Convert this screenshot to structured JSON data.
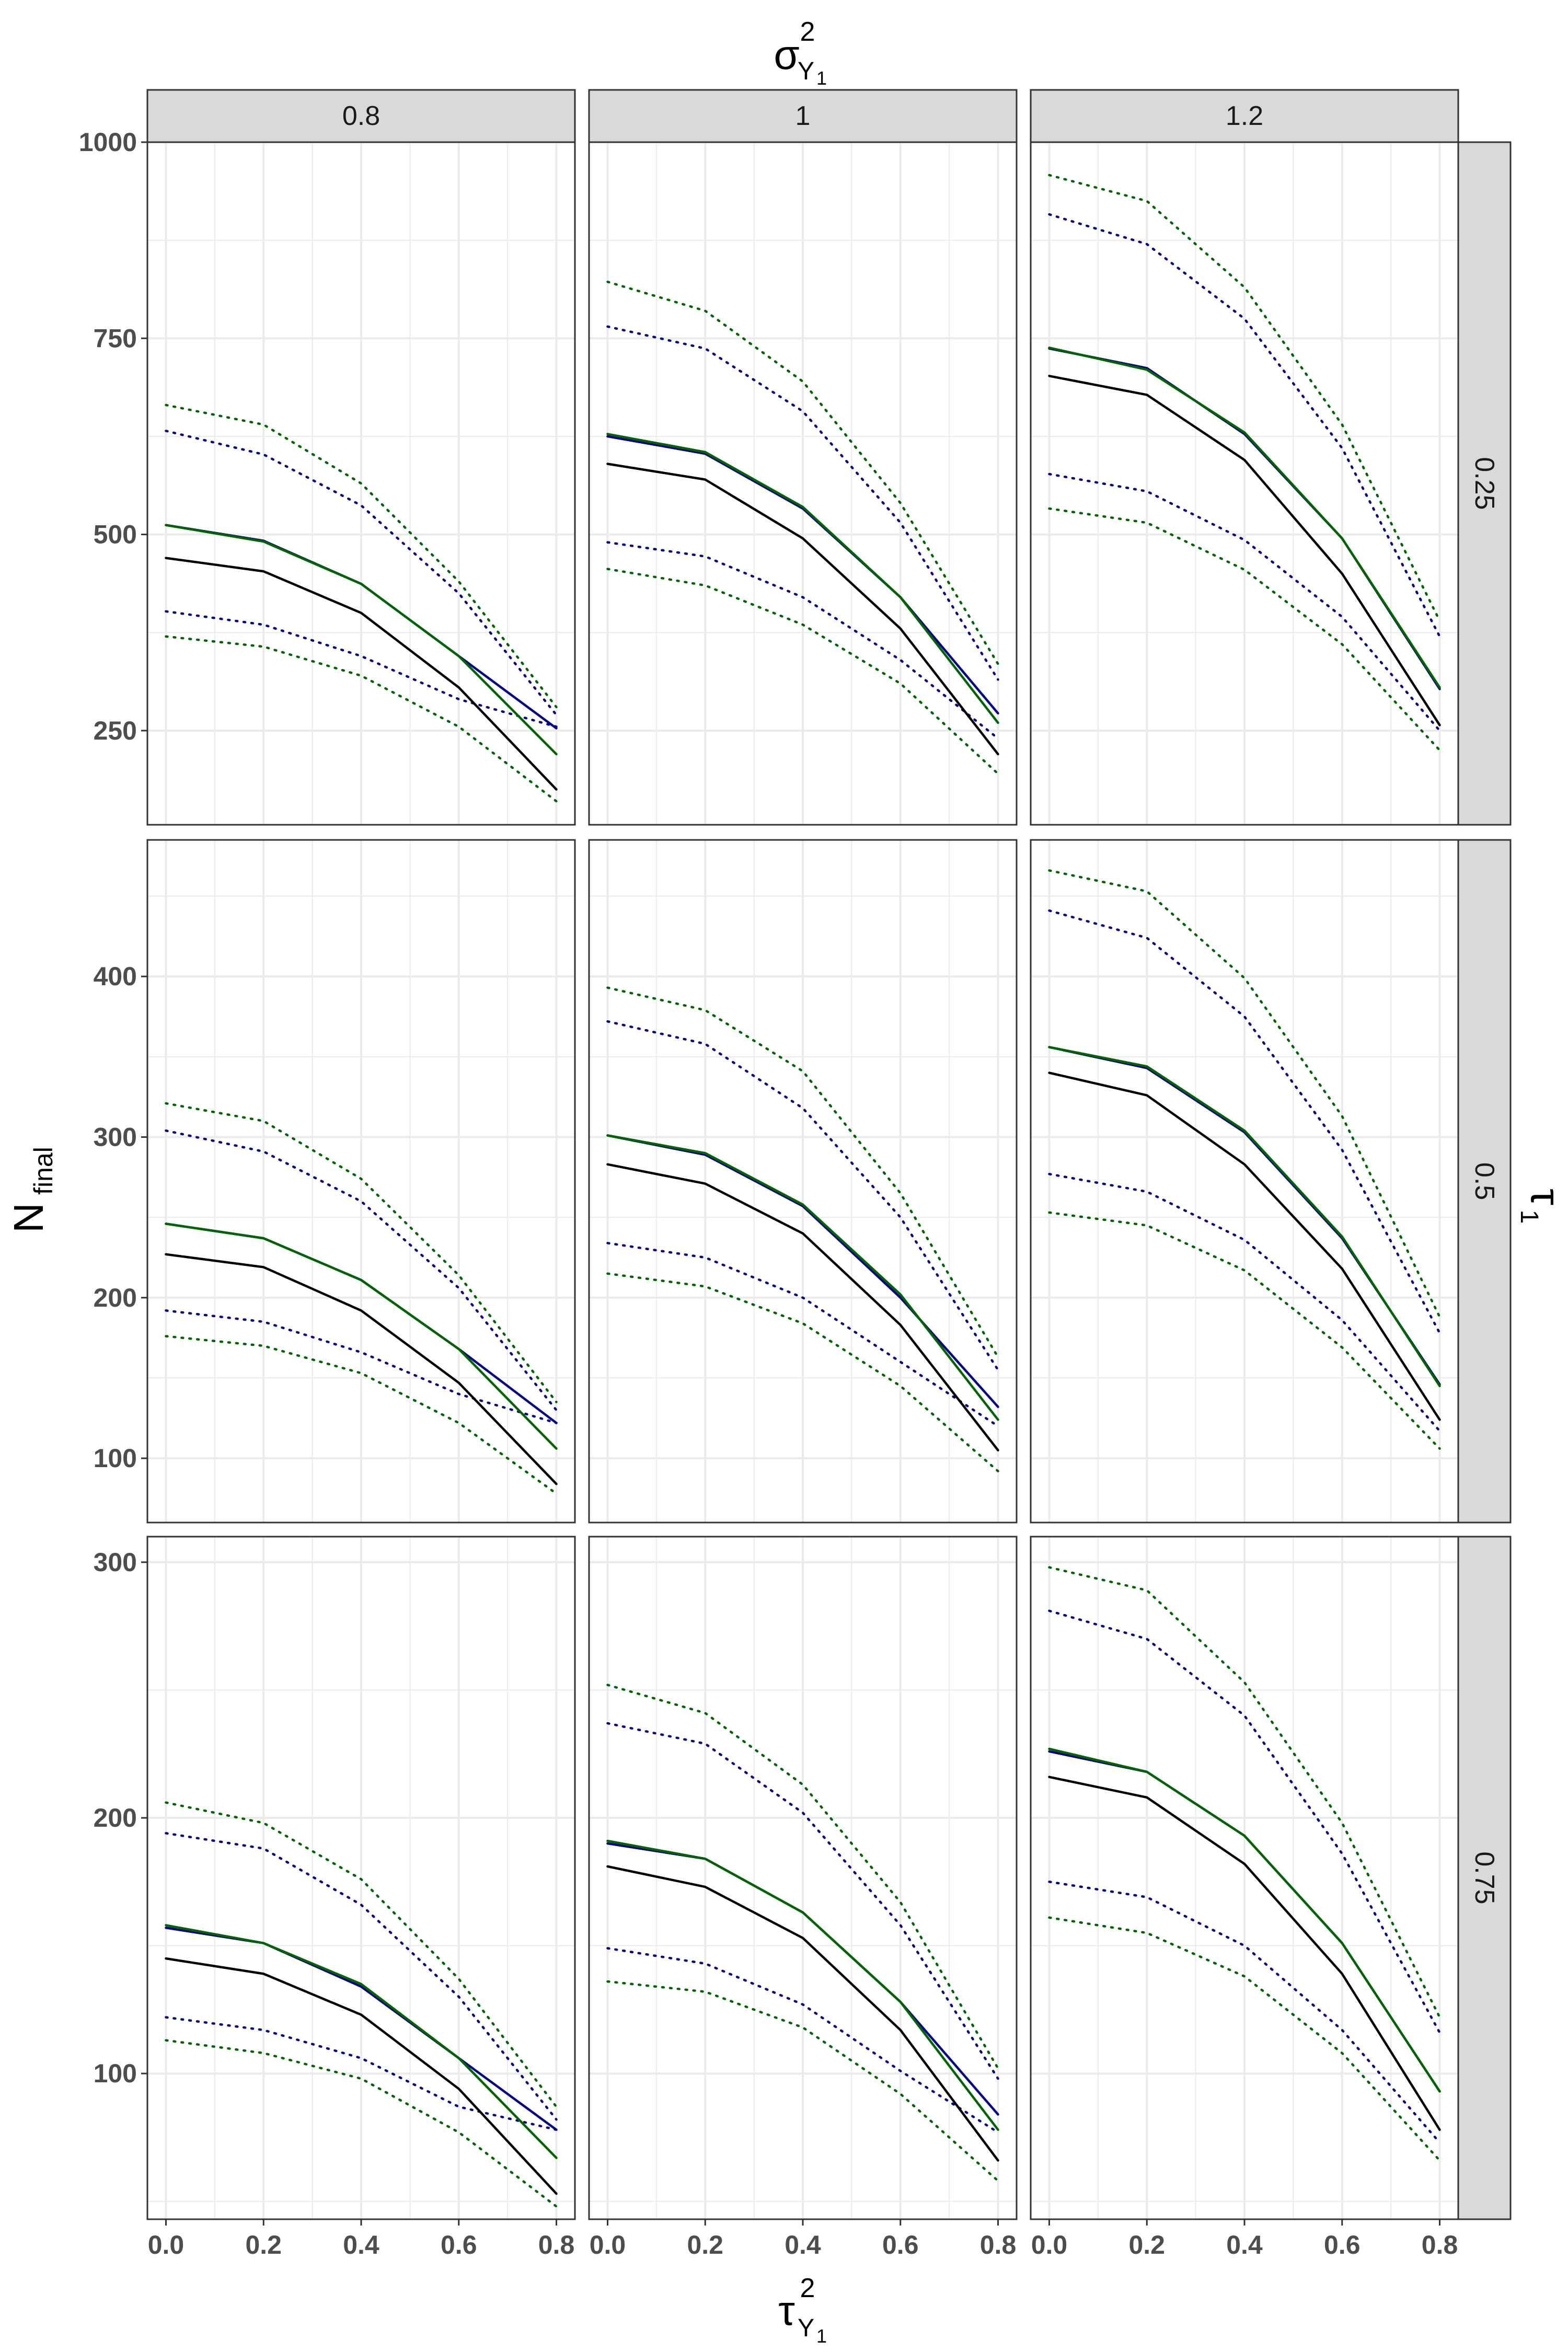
{
  "figure": {
    "top_title": "σ²_{Y1}",
    "top_title_main": "σ",
    "top_title_sup": "2",
    "top_title_sub": "Y",
    "top_title_subsub": "1",
    "right_title": "τ₁",
    "right_title_main": "τ",
    "right_title_sub": "1",
    "y_title": "N_final",
    "y_title_main": "N",
    "y_title_sub": "final",
    "x_title": "τ²_{Y1}",
    "x_title_main": "τ",
    "x_title_sup": "2",
    "x_title_sub": "Y",
    "x_title_subsub": "1",
    "col_strips": [
      "0.8",
      "1",
      "1.2"
    ],
    "row_strips": [
      "0.25",
      "0.5",
      "0.75"
    ],
    "colors": {
      "black": "#000000",
      "blue": "#00008B",
      "green": "#006400",
      "strip": "#d9d9d9",
      "grid": "#ebebeb"
    }
  },
  "chart_data": {
    "type": "line",
    "layout": "facet-grid",
    "x": [
      0.0,
      0.2,
      0.4,
      0.6,
      0.8
    ],
    "x_tick_labels": [
      "0.0",
      "0.2",
      "0.4",
      "0.6",
      "0.8"
    ],
    "rows": [
      {
        "label": "0.25",
        "ylim": [
          130,
          1000
        ],
        "y_ticks": [
          250,
          500,
          750,
          1000
        ],
        "y_tick_labels": [
          "250",
          "500",
          "750",
          "1000"
        ],
        "panels": [
          {
            "col": "0.8",
            "black": [
              470,
              453,
              400,
              305,
              175
            ],
            "blue": [
              512,
              492,
              437,
              345,
              253
            ],
            "green": [
              512,
              491,
              437,
              345,
              220
            ],
            "blue_upper": [
              632,
              602,
              537,
              425,
              270
            ],
            "blue_lower": [
              402,
              385,
              345,
              290,
              255
            ],
            "green_upper": [
              665,
              640,
              565,
              440,
              280
            ],
            "green_lower": [
              370,
              357,
              320,
              255,
              160
            ]
          },
          {
            "col": "1",
            "black": [
              590,
              570,
              495,
              380,
              220
            ],
            "blue": [
              625,
              603,
              533,
              420,
              272
            ],
            "green": [
              628,
              605,
              535,
              420,
              260
            ],
            "blue_upper": [
              765,
              737,
              657,
              515,
              315
            ],
            "blue_lower": [
              490,
              472,
              420,
              340,
              240
            ],
            "green_upper": [
              822,
              785,
              695,
              540,
              335
            ],
            "green_lower": [
              456,
              435,
              385,
              310,
              195
            ]
          },
          {
            "col": "1.2",
            "black": [
              702,
              678,
              595,
              450,
              257
            ],
            "blue": [
              737,
              712,
              628,
              495,
              303
            ],
            "green": [
              738,
              710,
              630,
              495,
              305
            ],
            "blue_upper": [
              908,
              870,
              775,
              610,
              370
            ],
            "blue_lower": [
              577,
              555,
              493,
              395,
              250
            ],
            "green_upper": [
              958,
              925,
              815,
              640,
              390
            ],
            "green_lower": [
              533,
              515,
              455,
              360,
              225
            ]
          }
        ]
      },
      {
        "label": "0.5",
        "ylim": [
          60,
          485
        ],
        "y_ticks": [
          100,
          200,
          300,
          400
        ],
        "y_tick_labels": [
          "100",
          "200",
          "300",
          "400"
        ],
        "panels": [
          {
            "col": "0.8",
            "black": [
              227,
              219,
              192,
              147,
              84
            ],
            "blue": [
              246,
              237,
              211,
              168,
              122
            ],
            "green": [
              246,
              237,
              211,
              168,
              106
            ],
            "blue_upper": [
              304,
              291,
              260,
              206,
              130
            ],
            "blue_lower": [
              192,
              185,
              166,
              140,
              122
            ],
            "green_upper": [
              321,
              310,
              274,
              214,
              135
            ],
            "green_lower": [
              176,
              170,
              153,
              122,
              78
            ]
          },
          {
            "col": "1",
            "black": [
              283,
              271,
              240,
              183,
              105
            ],
            "blue": [
              301,
              289,
              257,
              200,
              132
            ],
            "green": [
              301,
              290,
              258,
              202,
              124
            ],
            "blue_upper": [
              372,
              358,
              318,
              250,
              155
            ],
            "blue_lower": [
              234,
              225,
              200,
              160,
              120
            ],
            "green_upper": [
              393,
              379,
              341,
              265,
              163
            ],
            "green_lower": [
              215,
              207,
              184,
              145,
              92
            ]
          },
          {
            "col": "1.2",
            "black": [
              340,
              326,
              283,
              218,
              124
            ],
            "blue": [
              356,
              343,
              303,
              237,
              146
            ],
            "green": [
              356,
              344,
              304,
              238,
              145
            ],
            "blue_upper": [
              441,
              424,
              375,
              292,
              178
            ],
            "blue_lower": [
              277,
              266,
              236,
              186,
              117
            ],
            "green_upper": [
              466,
              453,
              399,
              313,
              188
            ],
            "green_lower": [
              253,
              245,
              217,
              169,
              106
            ]
          }
        ]
      },
      {
        "label": "0.75",
        "ylim": [
          43,
          310
        ],
        "y_ticks": [
          100,
          200,
          300
        ],
        "y_tick_labels": [
          "100",
          "200",
          "300"
        ],
        "panels": [
          {
            "col": "0.8",
            "black": [
              145,
              139,
              123,
              94,
              53
            ],
            "blue": [
              157,
              151,
              134,
              106,
              78
            ],
            "green": [
              158,
              151,
              135,
              106,
              67
            ],
            "blue_upper": [
              194,
              188,
              166,
              130,
              82
            ],
            "blue_lower": [
              122,
              117,
              106,
              87,
              78
            ],
            "green_upper": [
              206,
              198,
              176,
              137,
              87
            ],
            "green_lower": [
              113,
              108,
              98,
              77,
              48
            ]
          },
          {
            "col": "1",
            "black": [
              181,
              173,
              153,
              117,
              66
            ],
            "blue": [
              190,
              184,
              163,
              128,
              84
            ],
            "green": [
              191,
              184,
              163,
              128,
              78
            ],
            "blue_upper": [
              237,
              229,
              202,
              158,
              98
            ],
            "blue_lower": [
              149,
              143,
              127,
              101,
              77
            ],
            "green_upper": [
              252,
              241,
              213,
              167,
              102
            ],
            "green_lower": [
              136,
              132,
              118,
              92,
              58
            ]
          },
          {
            "col": "1.2",
            "black": [
              216,
              208,
              182,
              139,
              78
            ],
            "blue": [
              226,
              218,
              193,
              151,
              93
            ],
            "green": [
              227,
              218,
              193,
              151,
              93
            ],
            "blue_upper": [
              281,
              270,
              240,
              186,
              116
            ],
            "blue_lower": [
              175,
              169,
              150,
              117,
              73
            ],
            "green_upper": [
              298,
              289,
              253,
              198,
              122
            ],
            "green_lower": [
              161,
              155,
              138,
              108,
              66
            ]
          }
        ]
      }
    ]
  }
}
